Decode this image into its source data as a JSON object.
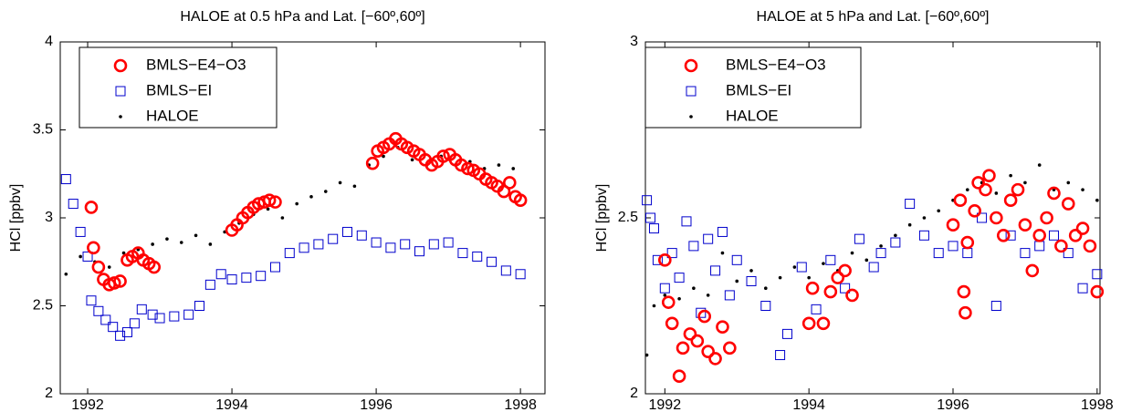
{
  "chart_data": [
    {
      "type": "scatter",
      "title": "HALOE at 0.5 hPa and Lat. [−60º,60º]",
      "ylabel": "HCl [ppbv]",
      "xlim": [
        1991.62,
        1998.34
      ],
      "ylim": [
        2,
        4
      ],
      "xticks": [
        1992,
        1994,
        1996,
        1998
      ],
      "yticks": [
        2,
        2.5,
        3,
        3.5,
        4
      ],
      "legend": "upper left",
      "series": [
        {
          "name": "BMLS−E4−O3",
          "color": "#ff0000",
          "marker": "circle",
          "x": [
            1992.05,
            1992.08,
            1992.15,
            1992.22,
            1992.3,
            1992.37,
            1992.45,
            1992.55,
            1992.62,
            1992.7,
            1992.77,
            1992.85,
            1992.92,
            1994.0,
            1994.07,
            1994.15,
            1994.22,
            1994.3,
            1994.37,
            1994.45,
            1994.52,
            1994.6,
            1995.95,
            1996.02,
            1996.1,
            1996.18,
            1996.27,
            1996.35,
            1996.43,
            1996.52,
            1996.6,
            1996.68,
            1996.77,
            1996.85,
            1996.93,
            1997.02,
            1997.1,
            1997.18,
            1997.27,
            1997.35,
            1997.43,
            1997.52,
            1997.6,
            1997.68,
            1997.77,
            1997.85,
            1997.93,
            1998.0
          ],
          "values": [
            3.06,
            2.83,
            2.72,
            2.65,
            2.62,
            2.63,
            2.64,
            2.76,
            2.78,
            2.8,
            2.76,
            2.74,
            2.72,
            2.93,
            2.96,
            3.0,
            3.03,
            3.06,
            3.08,
            3.09,
            3.1,
            3.09,
            3.31,
            3.38,
            3.4,
            3.42,
            3.45,
            3.42,
            3.4,
            3.38,
            3.36,
            3.33,
            3.3,
            3.32,
            3.35,
            3.36,
            3.33,
            3.3,
            3.28,
            3.27,
            3.25,
            3.22,
            3.2,
            3.18,
            3.15,
            3.2,
            3.12,
            3.1
          ]
        },
        {
          "name": "BMLS−EI",
          "color": "#0000cc",
          "marker": "square",
          "x": [
            1991.7,
            1991.8,
            1991.9,
            1992.0,
            1992.05,
            1992.15,
            1992.25,
            1992.35,
            1992.45,
            1992.55,
            1992.65,
            1992.75,
            1992.9,
            1993.0,
            1993.2,
            1993.4,
            1993.55,
            1993.7,
            1993.85,
            1994.0,
            1994.2,
            1994.4,
            1994.6,
            1994.8,
            1995.0,
            1995.2,
            1995.4,
            1995.6,
            1995.8,
            1996.0,
            1996.2,
            1996.4,
            1996.6,
            1996.8,
            1997.0,
            1997.2,
            1997.4,
            1997.6,
            1997.8,
            1998.0
          ],
          "values": [
            3.22,
            3.08,
            2.92,
            2.78,
            2.53,
            2.47,
            2.42,
            2.38,
            2.33,
            2.35,
            2.4,
            2.48,
            2.45,
            2.43,
            2.44,
            2.45,
            2.5,
            2.62,
            2.68,
            2.65,
            2.66,
            2.67,
            2.72,
            2.8,
            2.83,
            2.85,
            2.88,
            2.92,
            2.9,
            2.86,
            2.83,
            2.85,
            2.81,
            2.85,
            2.86,
            2.8,
            2.78,
            2.75,
            2.7,
            2.68
          ]
        },
        {
          "name": "HALOE",
          "color": "#000000",
          "marker": "dot",
          "x": [
            1991.7,
            1991.9,
            1992.1,
            1992.3,
            1992.5,
            1992.7,
            1992.9,
            1993.1,
            1993.3,
            1993.5,
            1993.7,
            1993.9,
            1994.1,
            1994.3,
            1994.5,
            1994.7,
            1994.9,
            1995.1,
            1995.3,
            1995.5,
            1995.7,
            1995.9,
            1996.1,
            1996.3,
            1996.5,
            1996.7,
            1996.9,
            1997.1,
            1997.3,
            1997.5,
            1997.7,
            1997.9
          ],
          "values": [
            2.68,
            2.78,
            2.75,
            2.72,
            2.8,
            2.82,
            2.85,
            2.88,
            2.86,
            2.9,
            2.85,
            2.92,
            2.97,
            3.02,
            3.05,
            3.0,
            3.08,
            3.12,
            3.15,
            3.2,
            3.18,
            3.3,
            3.35,
            3.4,
            3.33,
            3.3,
            3.35,
            3.3,
            3.32,
            3.28,
            3.3,
            3.28
          ]
        }
      ]
    },
    {
      "type": "scatter",
      "title": "HALOE at 5 hPa and Lat. [−60º,60º]",
      "ylabel": "HCl [ppbv]",
      "xlim": [
        1991.73,
        1998.04
      ],
      "ylim": [
        2,
        3
      ],
      "xticks": [
        1992,
        1994,
        1996,
        1998
      ],
      "yticks": [
        2,
        2.5,
        3
      ],
      "legend": "upper left",
      "series": [
        {
          "name": "BMLS−E4−O3",
          "color": "#ff0000",
          "marker": "circle",
          "x": [
            1992.0,
            1992.05,
            1992.1,
            1992.2,
            1992.25,
            1992.35,
            1992.45,
            1992.55,
            1992.6,
            1992.7,
            1992.8,
            1992.9,
            1994.0,
            1994.05,
            1994.2,
            1994.3,
            1994.4,
            1994.5,
            1994.6,
            1996.0,
            1996.1,
            1996.15,
            1996.17,
            1996.2,
            1996.3,
            1996.35,
            1996.45,
            1996.5,
            1996.6,
            1996.7,
            1996.8,
            1996.9,
            1997.0,
            1997.1,
            1997.2,
            1997.3,
            1997.4,
            1997.5,
            1997.6,
            1997.7,
            1997.8,
            1997.9,
            1998.0
          ],
          "values": [
            2.38,
            2.26,
            2.2,
            2.05,
            2.13,
            2.17,
            2.15,
            2.22,
            2.12,
            2.1,
            2.19,
            2.13,
            2.2,
            2.3,
            2.2,
            2.29,
            2.33,
            2.35,
            2.28,
            2.48,
            2.55,
            2.29,
            2.23,
            2.43,
            2.52,
            2.6,
            2.58,
            2.62,
            2.5,
            2.45,
            2.55,
            2.58,
            2.48,
            2.35,
            2.45,
            2.5,
            2.57,
            2.42,
            2.54,
            2.45,
            2.47,
            2.42,
            2.29
          ]
        },
        {
          "name": "BMLS−EI",
          "color": "#0000cc",
          "marker": "square",
          "x": [
            1991.75,
            1991.8,
            1991.85,
            1991.9,
            1992.0,
            1992.1,
            1992.2,
            1992.3,
            1992.4,
            1992.5,
            1992.6,
            1992.7,
            1992.8,
            1992.9,
            1993.0,
            1993.2,
            1993.4,
            1993.6,
            1993.7,
            1993.9,
            1994.1,
            1994.3,
            1994.5,
            1994.7,
            1994.9,
            1995.0,
            1995.2,
            1995.4,
            1995.6,
            1995.8,
            1996.0,
            1996.2,
            1996.4,
            1996.6,
            1996.8,
            1997.0,
            1997.2,
            1997.4,
            1997.6,
            1997.8,
            1998.0
          ],
          "values": [
            2.55,
            2.5,
            2.47,
            2.38,
            2.3,
            2.4,
            2.33,
            2.49,
            2.42,
            2.23,
            2.44,
            2.35,
            2.46,
            2.28,
            2.38,
            2.32,
            2.25,
            2.11,
            2.17,
            2.36,
            2.24,
            2.38,
            2.3,
            2.44,
            2.36,
            2.4,
            2.43,
            2.54,
            2.45,
            2.4,
            2.42,
            2.4,
            2.5,
            2.25,
            2.45,
            2.4,
            2.42,
            2.45,
            2.4,
            2.3,
            2.34
          ]
        },
        {
          "name": "HALOE",
          "color": "#000000",
          "marker": "dot",
          "x": [
            1991.75,
            1991.85,
            1992.0,
            1992.2,
            1992.4,
            1992.6,
            1992.8,
            1993.0,
            1993.2,
            1993.4,
            1993.6,
            1993.8,
            1994.0,
            1994.2,
            1994.4,
            1994.6,
            1994.8,
            1995.0,
            1995.2,
            1995.4,
            1995.6,
            1995.8,
            1996.0,
            1996.2,
            1996.4,
            1996.6,
            1996.8,
            1997.0,
            1997.2,
            1997.4,
            1997.6,
            1997.8,
            1998.0
          ],
          "values": [
            2.11,
            2.25,
            2.28,
            2.27,
            2.3,
            2.28,
            2.4,
            2.32,
            2.35,
            2.3,
            2.33,
            2.36,
            2.33,
            2.37,
            2.35,
            2.4,
            2.38,
            2.42,
            2.45,
            2.48,
            2.5,
            2.52,
            2.55,
            2.58,
            2.6,
            2.57,
            2.62,
            2.6,
            2.65,
            2.58,
            2.6,
            2.58,
            2.55
          ]
        }
      ]
    }
  ]
}
